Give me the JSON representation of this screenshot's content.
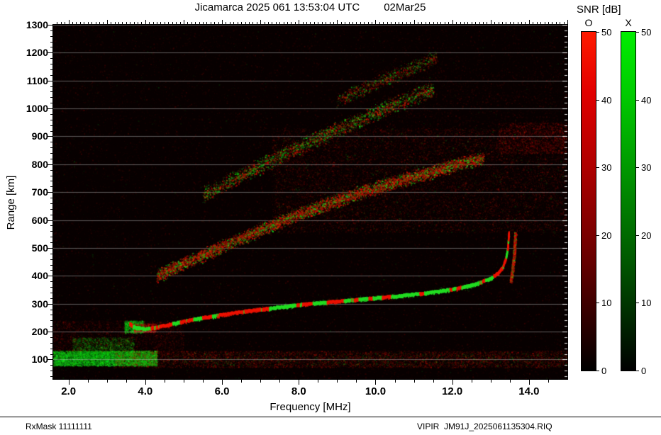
{
  "header": {
    "title": "Jicamarca 2025 061 13:53:04 UTC",
    "date": "02Mar25"
  },
  "footer": {
    "left": "RxMask 11111111",
    "right": "VIPIR  JM91J_2025061135304.RIQ"
  },
  "chart_data": {
    "type": "heatmap",
    "title": "Jicamarca 2025 061 13:53:04 UTC 02Mar25",
    "xlabel": "Frequency [MHz]",
    "ylabel": "Range [km]",
    "xlim": [
      1.6,
      15.0
    ],
    "ylim": [
      30,
      1300
    ],
    "xticks": [
      2.0,
      4.0,
      6.0,
      8.0,
      10.0,
      12.0,
      14.0
    ],
    "xtick_labels": [
      "2.0",
      "4.0",
      "6.0",
      "8.0",
      "10.0",
      "12.0",
      "14.0"
    ],
    "x_minor_step": 0.5,
    "x_top_step": 0.1,
    "yticks": [
      100,
      200,
      300,
      400,
      500,
      600,
      700,
      800,
      900,
      1000,
      1100,
      1200,
      1300
    ],
    "y_minor_step": 20,
    "grid": "horizontal-gray",
    "background": "#070000",
    "colors": {
      "o_mode": "#ff0000",
      "x_mode": "#00cc00",
      "grid": "#bbbbbb"
    },
    "colorbar": {
      "title": "SNR [dB]",
      "bars": [
        {
          "label": "O",
          "min": 0,
          "max": 50,
          "ticks": [
            0,
            10,
            20,
            30,
            40,
            50
          ],
          "color": "#ff0000"
        },
        {
          "label": "X",
          "min": 0,
          "max": 50,
          "ticks": [
            0,
            10,
            20,
            30,
            40,
            50
          ],
          "color": "#00cc00"
        }
      ]
    },
    "traces": [
      {
        "name": "f-region-first-hop",
        "kind": "main",
        "green_fraction": 0.4,
        "width": 5,
        "points": [
          [
            3.6,
            228
          ],
          [
            3.7,
            218
          ],
          [
            3.85,
            212
          ],
          [
            4.0,
            210
          ],
          [
            4.3,
            216
          ],
          [
            4.7,
            228
          ],
          [
            5.0,
            237
          ],
          [
            5.5,
            250
          ],
          [
            6.0,
            261
          ],
          [
            6.5,
            271
          ],
          [
            7.0,
            280
          ],
          [
            7.5,
            288
          ],
          [
            8.0,
            296
          ],
          [
            8.5,
            303
          ],
          [
            9.0,
            309
          ],
          [
            9.5,
            315
          ],
          [
            10.0,
            321
          ],
          [
            10.5,
            327
          ],
          [
            11.0,
            334
          ],
          [
            11.5,
            342
          ],
          [
            12.0,
            352
          ],
          [
            12.4,
            363
          ],
          [
            12.7,
            375
          ],
          [
            13.0,
            391
          ],
          [
            13.2,
            410
          ],
          [
            13.32,
            432
          ],
          [
            13.4,
            462
          ],
          [
            13.45,
            500
          ],
          [
            13.48,
            555
          ]
        ]
      },
      {
        "name": "x-mode-cusp",
        "kind": "band",
        "n": 900,
        "width": 3,
        "green_fraction": 0.18,
        "alpha": [
          0.5,
          1.0
        ],
        "points": [
          [
            13.52,
            380
          ],
          [
            13.56,
            420
          ],
          [
            13.6,
            465
          ],
          [
            13.62,
            510
          ],
          [
            13.64,
            555
          ]
        ]
      },
      {
        "name": "second-hop",
        "kind": "band",
        "n": 7500,
        "width": 11,
        "green_fraction": 0.28,
        "alpha": [
          0.25,
          0.95
        ],
        "points": [
          [
            4.3,
            400
          ],
          [
            5.0,
            445
          ],
          [
            6.0,
            505
          ],
          [
            7.0,
            565
          ],
          [
            8.0,
            622
          ],
          [
            9.0,
            672
          ],
          [
            10.0,
            716
          ],
          [
            11.0,
            756
          ],
          [
            12.0,
            795
          ],
          [
            12.8,
            822
          ]
        ]
      },
      {
        "name": "third-hop",
        "kind": "band",
        "n": 3200,
        "width": 13,
        "green_fraction": 0.45,
        "alpha": [
          0.2,
          0.8
        ],
        "points": [
          [
            5.5,
            690
          ],
          [
            6.5,
            760
          ],
          [
            7.5,
            830
          ],
          [
            8.5,
            895
          ],
          [
            9.5,
            955
          ],
          [
            10.5,
            1015
          ],
          [
            11.5,
            1070
          ]
        ]
      },
      {
        "name": "fourth-hop",
        "kind": "band",
        "n": 1100,
        "width": 12,
        "green_fraction": 0.35,
        "alpha": [
          0.15,
          0.6
        ],
        "points": [
          [
            9.0,
            1030
          ],
          [
            10.0,
            1090
          ],
          [
            11.0,
            1150
          ],
          [
            11.6,
            1185
          ]
        ]
      }
    ],
    "clouds": [
      {
        "name": "background-noise-red",
        "f": [
          1.6,
          15.0
        ],
        "r": [
          30,
          1300
        ],
        "n": 30000,
        "color": "red",
        "alpha": 0.2
      },
      {
        "name": "background-noise-green",
        "f": [
          1.6,
          15.0
        ],
        "r": [
          30,
          1300
        ],
        "n": 2600,
        "color": "green",
        "alpha": 0.16
      },
      {
        "name": "spread-f-red-cloud",
        "f": [
          7.3,
          15.0
        ],
        "r": [
          555,
          930
        ],
        "n": 14000,
        "color": "red",
        "alpha": 0.34
      },
      {
        "name": "spread-f-green-speckle",
        "f": [
          7.3,
          15.0
        ],
        "r": [
          555,
          930
        ],
        "n": 1100,
        "color": "green",
        "alpha": 0.3
      },
      {
        "name": "upper-right-red-haze",
        "f": [
          10.0,
          15.0
        ],
        "r": [
          850,
          1150
        ],
        "n": 2400,
        "color": "red",
        "alpha": 0.22
      },
      {
        "name": "right-edge-red-patch",
        "f": [
          13.2,
          15.0
        ],
        "r": [
          840,
          950
        ],
        "n": 2200,
        "color": "red",
        "alpha": 0.4
      },
      {
        "name": "e-region-green-blob",
        "f": [
          1.6,
          4.3
        ],
        "r": [
          78,
          132
        ],
        "n": 9000,
        "color": "green",
        "alpha": 0.85
      },
      {
        "name": "e-region-green-spikes",
        "f": [
          2.1,
          3.7
        ],
        "r": [
          105,
          180
        ],
        "n": 2400,
        "color": "green",
        "alpha": 0.5
      },
      {
        "name": "e-region-red-band",
        "f": [
          3.2,
          15.0
        ],
        "r": [
          72,
          132
        ],
        "n": 8000,
        "color": "red",
        "alpha": 0.45
      },
      {
        "name": "e-region-green-speckle",
        "f": [
          4.3,
          15.0
        ],
        "r": [
          78,
          126
        ],
        "n": 1300,
        "color": "green",
        "alpha": 0.35
      },
      {
        "name": "left-low-red-haze",
        "f": [
          1.6,
          5.0
        ],
        "r": [
          130,
          240
        ],
        "n": 3200,
        "color": "red",
        "alpha": 0.28
      },
      {
        "name": "trace-start-green-clump",
        "f": [
          3.45,
          3.95
        ],
        "r": [
          196,
          240
        ],
        "n": 1100,
        "color": "green",
        "alpha": 0.8
      },
      {
        "name": "trace-start-red-clump",
        "f": [
          3.7,
          4.3
        ],
        "r": [
          198,
          230
        ],
        "n": 900,
        "color": "red",
        "alpha": 0.7
      }
    ]
  }
}
